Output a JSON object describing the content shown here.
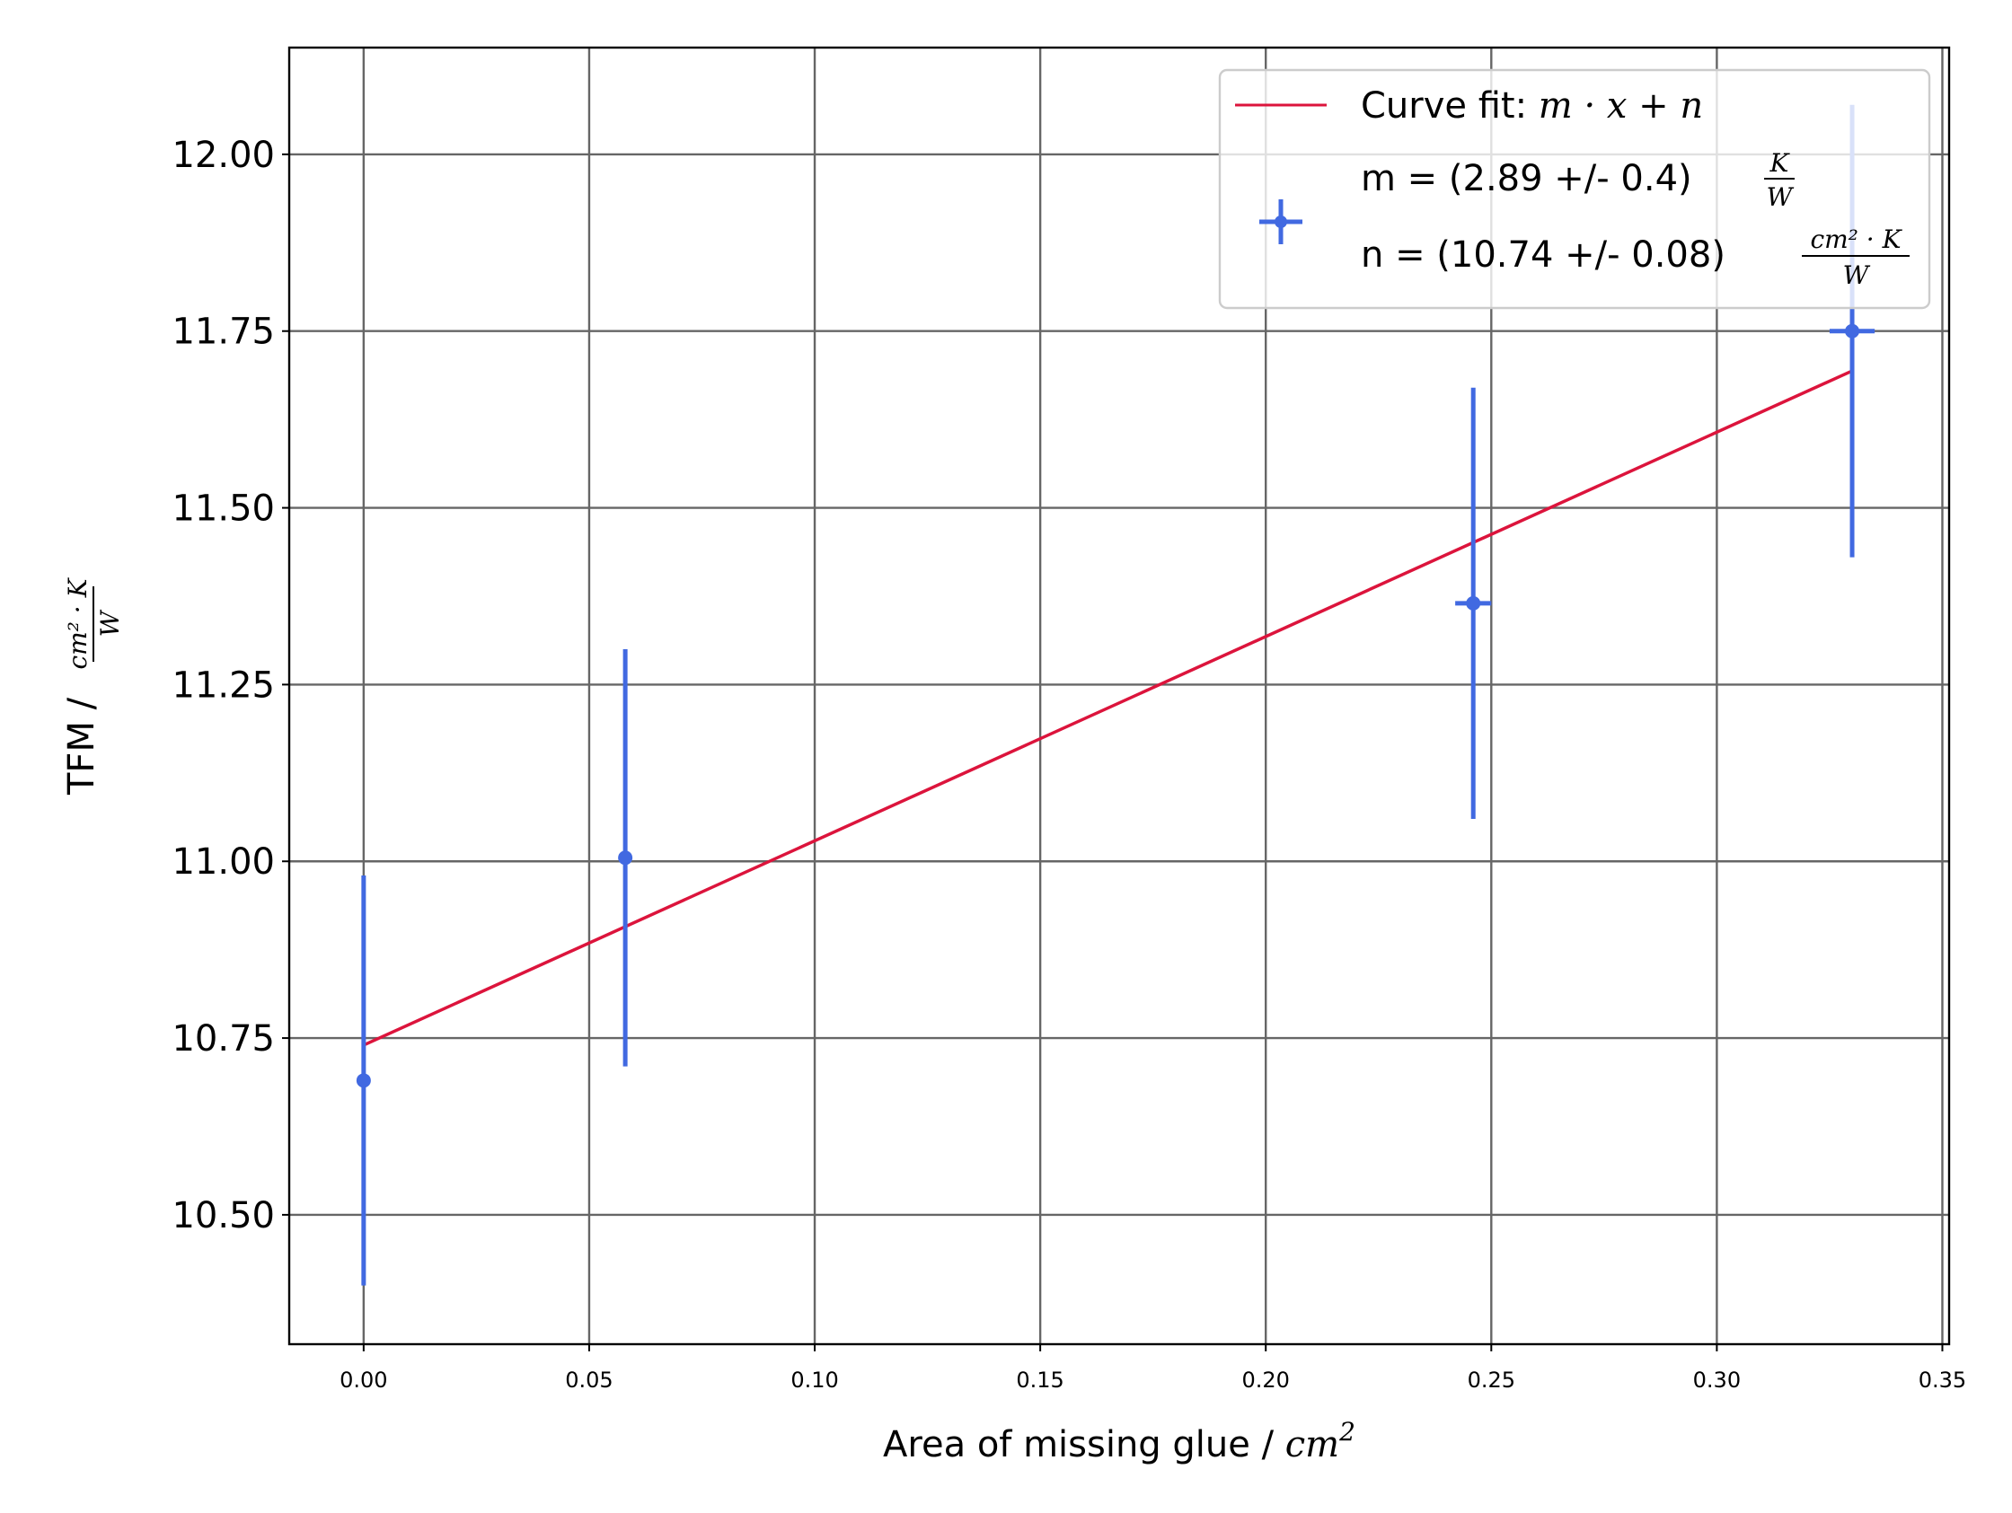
{
  "chart_data": {
    "type": "scatter",
    "xlabel": "Area of missing glue / ",
    "xlabel_unit": "cm",
    "xlabel_unit_exp": "2",
    "ylabel": "TFM / ",
    "ylabel_unit_num": "cm² · K",
    "ylabel_unit_den": "W",
    "xlim": [
      -0.0165,
      0.3515
    ],
    "ylim": [
      10.317,
      12.151
    ],
    "xticks": [
      0.0,
      0.05,
      0.1,
      0.15,
      0.2,
      0.25,
      0.3,
      0.35
    ],
    "xtick_labels": [
      "0.00",
      "0.05",
      "0.10",
      "0.15",
      "0.20",
      "0.25",
      "0.30",
      "0.35"
    ],
    "yticks": [
      10.5,
      10.75,
      11.0,
      11.25,
      11.5,
      11.75,
      12.0
    ],
    "ytick_labels": [
      "10.50",
      "10.75",
      "11.00",
      "11.25",
      "11.50",
      "11.75",
      "12.00"
    ],
    "grid": true,
    "legend_position": "top-right",
    "series": [
      {
        "kind": "errorbar",
        "color": "#4169E1",
        "points": [
          {
            "x": 0.0,
            "y": 10.69,
            "yerr": 0.29,
            "xerr": 0.0
          },
          {
            "x": 0.058,
            "y": 11.005,
            "yerr": 0.295,
            "xerr": 0.0
          },
          {
            "x": 0.246,
            "y": 11.365,
            "yerr": 0.305,
            "xerr": 0.004
          },
          {
            "x": 0.33,
            "y": 11.75,
            "yerr": 0.32,
            "xerr": 0.005
          }
        ]
      },
      {
        "kind": "line",
        "color": "#DC143C",
        "x": [
          0.0,
          0.33
        ],
        "y": [
          10.74,
          11.6937
        ]
      }
    ],
    "legend": {
      "fit_label": "Curve fit: ",
      "fit_formula": "m · x + n",
      "m_text": "m = (2.89 +/- 0.4)",
      "m_unit_num": "K",
      "m_unit_den": "W",
      "n_text": "n = (10.74 +/- 0.08)",
      "n_unit_num": "cm² · K",
      "n_unit_den": "W"
    }
  }
}
